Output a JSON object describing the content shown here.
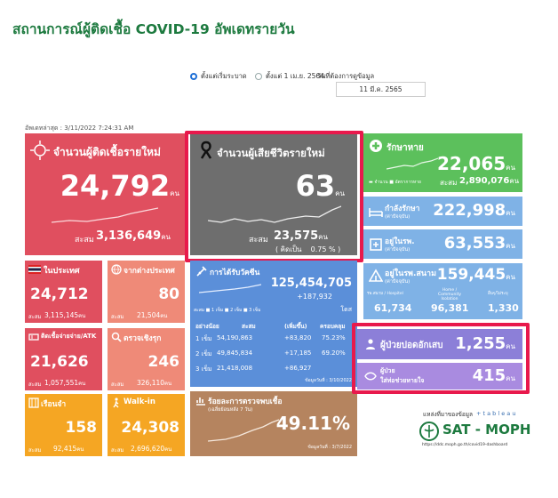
{
  "header": {
    "title": "สถานการณ์ผู้ติดเชื้อ COVID-19 อัพเดทรายวัน",
    "radio_all": "ตั้งแต่เริ่มระบาด",
    "radio_since": "ตั้งแต่ 1 เม.ย. 2564",
    "date_label": "วันที่ต้องการดูข้อมูล",
    "date_value": "11 มี.ค. 2565",
    "updated": "อัพเดทล่าสุด : 3/11/2022 7:24:31 AM"
  },
  "unit": "คน",
  "cases": {
    "label": "จำนวนผู้ติดเชื้อรายใหม่",
    "value": "24,792",
    "cum_label": "สะสม",
    "cum": "3,136,649",
    "color": "#e04f5f"
  },
  "deaths": {
    "label": "จำนวนผู้เสียชีวิตรายใหม่",
    "value": "63",
    "cum_label": "สะสม",
    "cum": "23,575",
    "pct_open": "( คิดเป็น",
    "pct": "0.75",
    "pct_close": "% )",
    "color": "#6e6e6e"
  },
  "recovered": {
    "label": "รักษาหาย",
    "value": "22,065",
    "legend_a": "จำนวน",
    "legend_b": "อัตราการหาย",
    "cum_label": "สะสม",
    "cum": "2,890,076",
    "color": "#5cc05c"
  },
  "treating": {
    "label": "กำลังรักษา",
    "sub": "(ค่าปัจจุบัน)",
    "value": "222,998",
    "color": "#7fb2e6"
  },
  "in_hospital": {
    "label": "อยู่ในรพ.",
    "sub": "(ค่าปัจจุบัน)",
    "value": "63,553",
    "color": "#7fb2e6"
  },
  "field_hospital": {
    "label": "อยู่ในรพ.สนาม",
    "sub": "(ค่าปัจจุบัน)",
    "value": "159,445",
    "col1": "รพ.สนาม / Hospitel",
    "col2": "Home / Community Isolation",
    "col3": "อื่นๆ/ไม่ระบุ",
    "v1": "61,734",
    "v2": "96,381",
    "v3": "1,330",
    "color": "#7fb2e6"
  },
  "domestic": {
    "label": "ในประเทศ",
    "value": "24,712",
    "cum_label": "สะสม",
    "cum": "3,115,145",
    "color": "#e04f5f"
  },
  "imported": {
    "label": "จากต่างประเทศ",
    "value": "80",
    "cum_label": "สะสม",
    "cum": "21,504",
    "color": "#ef8a78"
  },
  "prison": {
    "label": "ติดเชื้อจ่ายจ่าย/ATK",
    "value": "21,626",
    "cum_label": "สะสม",
    "cum": "1,057,551",
    "color": "#e04f5f"
  },
  "proactive": {
    "label": "ตรวจเชิงรุก",
    "value": "246",
    "cum_label": "สะสม",
    "cum": "326,110",
    "color": "#ef8a78"
  },
  "prison2": {
    "label": "เรือนจำ",
    "value": "158",
    "cum_label": "สะสม",
    "cum": "92,415",
    "color": "#f5a623"
  },
  "walkin": {
    "label": "Walk-in",
    "value": "24,308",
    "cum_label": "สะสม",
    "cum": "2,696,620",
    "color": "#f5a623"
  },
  "vaccine": {
    "label": "การได้รับวัคซีน",
    "total": "125,454,705",
    "delta": "+187,932",
    "dose_unit": "โดส",
    "legend": "สะสม ■ 1 เข็ม ■ 2 เข็ม ■ 3 เข็ม",
    "headers": [
      "อย่างน้อย",
      "สะสม",
      "(เพิ่มขึ้น)",
      "ครอบคลุม"
    ],
    "rows": [
      [
        "1 เข็ม",
        "54,190,863",
        "+83,820",
        "75.23%"
      ],
      [
        "2 เข็ม",
        "49,845,834",
        "+17,185",
        "69.20%"
      ],
      [
        "3 เข็ม",
        "21,418,008",
        "+86,927",
        ""
      ]
    ],
    "as_of": "ข้อมูลวันที่ : 3/10/2022",
    "color": "#5b8fd9"
  },
  "positivity": {
    "label": "ร้อยละการตรวจพบเชื้อ",
    "sub": "(เฉลี่ยย้อนหลัง 7 วัน)",
    "value": "49.11%",
    "as_of": "ข้อมูลวันที่ : 3/7/2022",
    "color": "#b5845f"
  },
  "severe": {
    "label": "ผู้ป่วยปอดอักเสบ",
    "value": "1,255",
    "color": "#8c7fd8"
  },
  "ventilator": {
    "label_a": "ผู้ป่วย",
    "label_b": "ใส่ท่อช่วยหายใจ",
    "value": "415",
    "color": "#a98be0"
  },
  "source": {
    "label": "แหล่งที่มาของข้อมูล",
    "tableau": "+ t a b l e a u",
    "org": "SAT - MOPH",
    "url": "https://ddc.moph.go.th/covid19-dashboard"
  },
  "colors": {
    "title_green": "#1d7a3f",
    "highlight": "#e8194c"
  }
}
